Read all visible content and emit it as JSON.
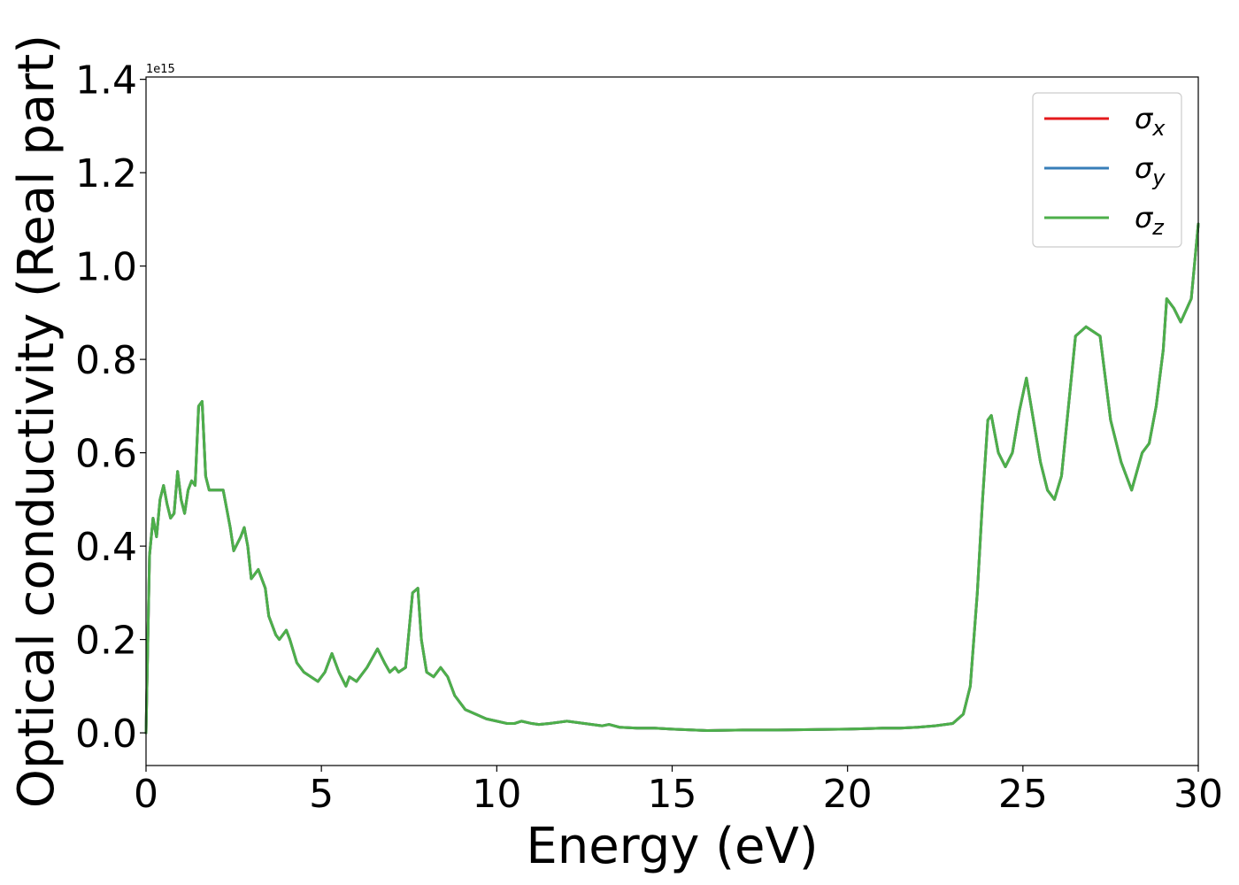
{
  "chart_data": {
    "type": "line",
    "title": "",
    "xlabel": "Energy (eV)",
    "ylabel": "Optical conductivity (Real part)",
    "y_offset_label": "1e15",
    "xlim": [
      0,
      30
    ],
    "ylim": [
      -0.07,
      1.405
    ],
    "x_ticks": [
      0,
      5,
      10,
      15,
      20,
      25,
      30
    ],
    "x_tick_labels": [
      "0",
      "5",
      "10",
      "15",
      "20",
      "25",
      "30"
    ],
    "y_ticks": [
      0.0,
      0.2,
      0.4,
      0.6,
      0.8,
      1.0,
      1.2,
      1.4
    ],
    "y_tick_labels": [
      "0.0",
      "0.2",
      "0.4",
      "0.6",
      "0.8",
      "1.0",
      "1.2",
      "1.4"
    ],
    "grid": false,
    "legend_position": "top-right",
    "x": [
      0,
      0.1,
      0.2,
      0.3,
      0.4,
      0.5,
      0.6,
      0.7,
      0.8,
      0.9,
      1.0,
      1.1,
      1.2,
      1.3,
      1.4,
      1.5,
      1.6,
      1.7,
      1.8,
      1.9,
      2.0,
      2.2,
      2.4,
      2.5,
      2.7,
      2.8,
      2.9,
      3.0,
      3.1,
      3.2,
      3.4,
      3.5,
      3.7,
      3.8,
      4.0,
      4.1,
      4.3,
      4.5,
      4.7,
      4.9,
      5.1,
      5.3,
      5.5,
      5.7,
      5.8,
      6.0,
      6.3,
      6.6,
      6.8,
      6.95,
      7.1,
      7.2,
      7.4,
      7.6,
      7.75,
      7.85,
      8.0,
      8.2,
      8.4,
      8.6,
      8.8,
      9.1,
      9.4,
      9.7,
      10.0,
      10.3,
      10.5,
      10.7,
      11.0,
      11.2,
      11.5,
      12.0,
      12.5,
      13.0,
      13.2,
      13.5,
      14.0,
      14.5,
      15.0,
      16.0,
      17.0,
      18.0,
      19.0,
      20.0,
      20.5,
      21.0,
      21.5,
      22.0,
      22.5,
      23.0,
      23.3,
      23.5,
      23.7,
      23.85,
      24.0,
      24.1,
      24.3,
      24.5,
      24.7,
      24.9,
      25.1,
      25.3,
      25.5,
      25.7,
      25.9,
      26.1,
      26.3,
      26.5,
      26.8,
      27.0,
      27.2,
      27.5,
      27.8,
      28.1,
      28.4,
      28.6,
      28.8,
      29.0,
      29.1,
      29.3,
      29.5,
      29.8,
      30.0
    ],
    "series": [
      {
        "name": "σx",
        "color": "#e41a1c",
        "values": [
          0.0,
          0.38,
          0.46,
          0.42,
          0.5,
          0.53,
          0.49,
          0.46,
          0.47,
          0.56,
          0.5,
          0.47,
          0.52,
          0.54,
          0.53,
          0.7,
          0.71,
          0.55,
          0.52,
          0.52,
          0.52,
          0.52,
          0.44,
          0.39,
          0.42,
          0.44,
          0.4,
          0.33,
          0.34,
          0.35,
          0.31,
          0.25,
          0.21,
          0.2,
          0.22,
          0.2,
          0.15,
          0.13,
          0.12,
          0.11,
          0.13,
          0.17,
          0.13,
          0.1,
          0.12,
          0.11,
          0.14,
          0.18,
          0.15,
          0.13,
          0.14,
          0.13,
          0.14,
          0.3,
          0.31,
          0.2,
          0.13,
          0.12,
          0.14,
          0.12,
          0.08,
          0.05,
          0.04,
          0.03,
          0.025,
          0.02,
          0.02,
          0.025,
          0.02,
          0.018,
          0.02,
          0.025,
          0.02,
          0.015,
          0.018,
          0.012,
          0.01,
          0.01,
          0.008,
          0.005,
          0.006,
          0.006,
          0.007,
          0.008,
          0.009,
          0.01,
          0.01,
          0.012,
          0.015,
          0.02,
          0.04,
          0.1,
          0.3,
          0.5,
          0.67,
          0.68,
          0.6,
          0.57,
          0.6,
          0.69,
          0.76,
          0.67,
          0.58,
          0.52,
          0.5,
          0.55,
          0.7,
          0.85,
          0.87,
          0.86,
          0.85,
          0.67,
          0.58,
          0.52,
          0.6,
          0.62,
          0.7,
          0.82,
          0.93,
          0.91,
          0.88,
          0.93,
          1.09
        ]
      },
      {
        "name": "σy",
        "color": "#377eb8",
        "values": [
          0.0,
          0.38,
          0.46,
          0.42,
          0.5,
          0.53,
          0.49,
          0.46,
          0.47,
          0.56,
          0.5,
          0.47,
          0.52,
          0.54,
          0.53,
          0.7,
          0.71,
          0.55,
          0.52,
          0.52,
          0.52,
          0.52,
          0.44,
          0.39,
          0.42,
          0.44,
          0.4,
          0.33,
          0.34,
          0.35,
          0.31,
          0.25,
          0.21,
          0.2,
          0.22,
          0.2,
          0.15,
          0.13,
          0.12,
          0.11,
          0.13,
          0.17,
          0.13,
          0.1,
          0.12,
          0.11,
          0.14,
          0.18,
          0.15,
          0.13,
          0.14,
          0.13,
          0.14,
          0.3,
          0.31,
          0.2,
          0.13,
          0.12,
          0.14,
          0.12,
          0.08,
          0.05,
          0.04,
          0.03,
          0.025,
          0.02,
          0.02,
          0.025,
          0.02,
          0.018,
          0.02,
          0.025,
          0.02,
          0.015,
          0.018,
          0.012,
          0.01,
          0.01,
          0.008,
          0.005,
          0.006,
          0.006,
          0.007,
          0.008,
          0.009,
          0.01,
          0.01,
          0.012,
          0.015,
          0.02,
          0.04,
          0.1,
          0.3,
          0.5,
          0.67,
          0.68,
          0.6,
          0.57,
          0.6,
          0.69,
          0.76,
          0.67,
          0.58,
          0.52,
          0.5,
          0.55,
          0.7,
          0.85,
          0.87,
          0.86,
          0.85,
          0.67,
          0.58,
          0.52,
          0.6,
          0.62,
          0.7,
          0.82,
          0.93,
          0.91,
          0.88,
          0.93,
          1.09
        ]
      },
      {
        "name": "σz",
        "color": "#4daf4a",
        "values": [
          0.0,
          0.38,
          0.46,
          0.42,
          0.5,
          0.53,
          0.49,
          0.46,
          0.47,
          0.56,
          0.5,
          0.47,
          0.52,
          0.54,
          0.53,
          0.7,
          0.71,
          0.55,
          0.52,
          0.52,
          0.52,
          0.52,
          0.44,
          0.39,
          0.42,
          0.44,
          0.4,
          0.33,
          0.34,
          0.35,
          0.31,
          0.25,
          0.21,
          0.2,
          0.22,
          0.2,
          0.15,
          0.13,
          0.12,
          0.11,
          0.13,
          0.17,
          0.13,
          0.1,
          0.12,
          0.11,
          0.14,
          0.18,
          0.15,
          0.13,
          0.14,
          0.13,
          0.14,
          0.3,
          0.31,
          0.2,
          0.13,
          0.12,
          0.14,
          0.12,
          0.08,
          0.05,
          0.04,
          0.03,
          0.025,
          0.02,
          0.02,
          0.025,
          0.02,
          0.018,
          0.02,
          0.025,
          0.02,
          0.015,
          0.018,
          0.012,
          0.01,
          0.01,
          0.008,
          0.005,
          0.006,
          0.006,
          0.007,
          0.008,
          0.009,
          0.01,
          0.01,
          0.012,
          0.015,
          0.02,
          0.04,
          0.1,
          0.3,
          0.5,
          0.67,
          0.68,
          0.6,
          0.57,
          0.6,
          0.69,
          0.76,
          0.67,
          0.58,
          0.52,
          0.5,
          0.55,
          0.7,
          0.85,
          0.87,
          0.86,
          0.85,
          0.67,
          0.58,
          0.52,
          0.6,
          0.62,
          0.7,
          0.82,
          0.93,
          0.91,
          0.88,
          0.93,
          1.09
        ]
      }
    ]
  }
}
